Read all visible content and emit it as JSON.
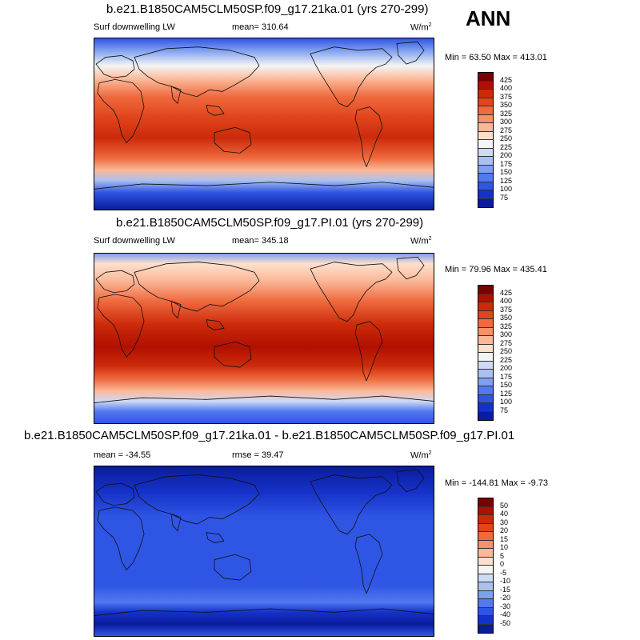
{
  "season": "ANN",
  "units": "W/m",
  "units_sup": "2",
  "panels": [
    {
      "title": "b.e21.B1850CAM5CLM50SP.f09_g17.21ka.01 (yrs 270-299)",
      "variable": "Surf downwelling LW",
      "mean": "mean= 310.64",
      "minmax": "Min =  63.50 Max = 413.01"
    },
    {
      "title": "b.e21.B1850CAM5CLM50SP.f09_g17.PI.01 (yrs 270-299)",
      "variable": "Surf downwelling LW",
      "mean": "mean= 345.18",
      "minmax": "Min =  79.96 Max = 435.41"
    },
    {
      "title": "b.e21.B1850CAM5CLM50SP.f09_g17.21ka.01 - b.e21.B1850CAM5CLM50SP.f09_g17.PI.01",
      "mean": "mean = -34.55",
      "rmse": "rmse =  39.47",
      "minmax": "Min = -144.81 Max =  -9.73"
    }
  ],
  "colorbar_abs": {
    "ticks": [
      "425",
      "400",
      "375",
      "350",
      "325",
      "300",
      "275",
      "250",
      "225",
      "200",
      "175",
      "150",
      "125",
      "100",
      "75"
    ],
    "colors": [
      "#7a0000",
      "#b01000",
      "#cc2a0a",
      "#e0451c",
      "#ef6a3e",
      "#f7916a",
      "#fbb898",
      "#fde0cc",
      "#f4f4f4",
      "#cfdaf5",
      "#a9c0f0",
      "#7f9ff0",
      "#5279f0",
      "#2f55e4",
      "#1532c8",
      "#0a1c9c"
    ]
  },
  "colorbar_diff": {
    "ticks": [
      "50",
      "40",
      "30",
      "20",
      "15",
      "10",
      "5",
      "0",
      "-5",
      "-10",
      "-15",
      "-20",
      "-30",
      "-40",
      "-50"
    ],
    "colors": [
      "#7a0000",
      "#b01000",
      "#cc2a0a",
      "#e0451c",
      "#ef6a3e",
      "#f7916a",
      "#fbb898",
      "#fde0cc",
      "#f4f4f4",
      "#cfdaf5",
      "#a9c0f0",
      "#7f9ff0",
      "#5279f0",
      "#2f55e4",
      "#1532c8",
      "#0a1c9c"
    ]
  }
}
